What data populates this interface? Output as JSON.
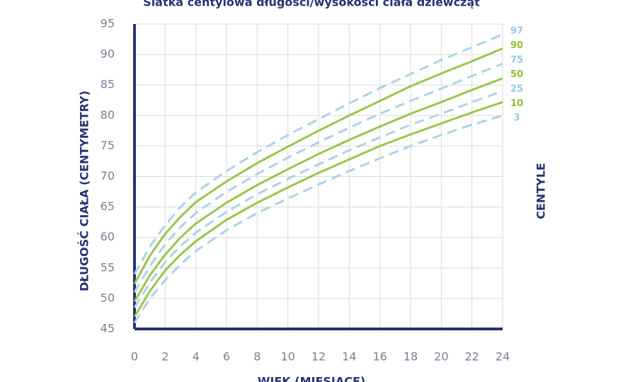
{
  "chart_data": {
    "type": "line",
    "title": "Siatka centylowa długości/wysokości ciała dziewcząt",
    "xlabel": "WIEK (MIESIĄCE)",
    "ylabel": "DŁUGOŚĆ CIAŁA (CENTYMETRY)",
    "legend_title": "CENTYLE",
    "x": [
      0,
      1,
      2,
      3,
      4,
      6,
      8,
      10,
      12,
      14,
      16,
      18,
      20,
      22,
      24
    ],
    "series": [
      {
        "name": "97",
        "color": "#a8d5e5",
        "dashed": true,
        "values": [
          54,
          58.5,
          62,
          65,
          67.4,
          70.9,
          74,
          76.8,
          79.4,
          82,
          84.5,
          86.8,
          89.1,
          91.2,
          93.3
        ]
      },
      {
        "name": "90",
        "color": "#9dc44a",
        "dashed": false,
        "values": [
          52.4,
          57,
          60.6,
          63.4,
          65.8,
          69.2,
          72.2,
          74.9,
          77.5,
          80,
          82.4,
          84.8,
          86.9,
          88.9,
          91
        ]
      },
      {
        "name": "75",
        "color": "#a8d5e5",
        "dashed": true,
        "values": [
          51,
          55.3,
          58.9,
          61.7,
          64,
          67.5,
          70.4,
          73.1,
          75.6,
          78,
          80.3,
          82.4,
          84.4,
          86.5,
          88.5
        ]
      },
      {
        "name": "50",
        "color": "#9dc44a",
        "dashed": false,
        "values": [
          49.5,
          53.8,
          57.2,
          60,
          62.3,
          65.7,
          68.6,
          71.2,
          73.7,
          76,
          78.2,
          80.3,
          82.2,
          84.2,
          86.1
        ]
      },
      {
        "name": "25",
        "color": "#a8d5e5",
        "dashed": true,
        "values": [
          48.5,
          52.6,
          56,
          58.6,
          60.8,
          64.2,
          67.1,
          69.6,
          72,
          74.3,
          76.4,
          78.5,
          80.3,
          82.2,
          84
        ]
      },
      {
        "name": "10",
        "color": "#9dc44a",
        "dashed": false,
        "values": [
          47,
          51.2,
          54.6,
          57.2,
          59.4,
          62.9,
          65.7,
          68.2,
          70.6,
          72.8,
          75,
          76.9,
          78.7,
          80.5,
          82.2
        ]
      },
      {
        "name": "3",
        "color": "#a8d5e5",
        "dashed": true,
        "values": [
          46,
          50,
          53,
          55.6,
          57.8,
          61.2,
          64,
          66.4,
          68.7,
          70.9,
          73,
          75,
          76.8,
          78.5,
          80
        ]
      }
    ],
    "xlim": [
      0,
      24
    ],
    "xticks": [
      0,
      2,
      4,
      6,
      8,
      10,
      12,
      14,
      16,
      18,
      20,
      22,
      24
    ],
    "ylim": [
      45,
      95
    ],
    "yticks": [
      45,
      50,
      55,
      60,
      65,
      70,
      75,
      80,
      85,
      90,
      95
    ],
    "grid": true,
    "axis_color": "#263375"
  }
}
